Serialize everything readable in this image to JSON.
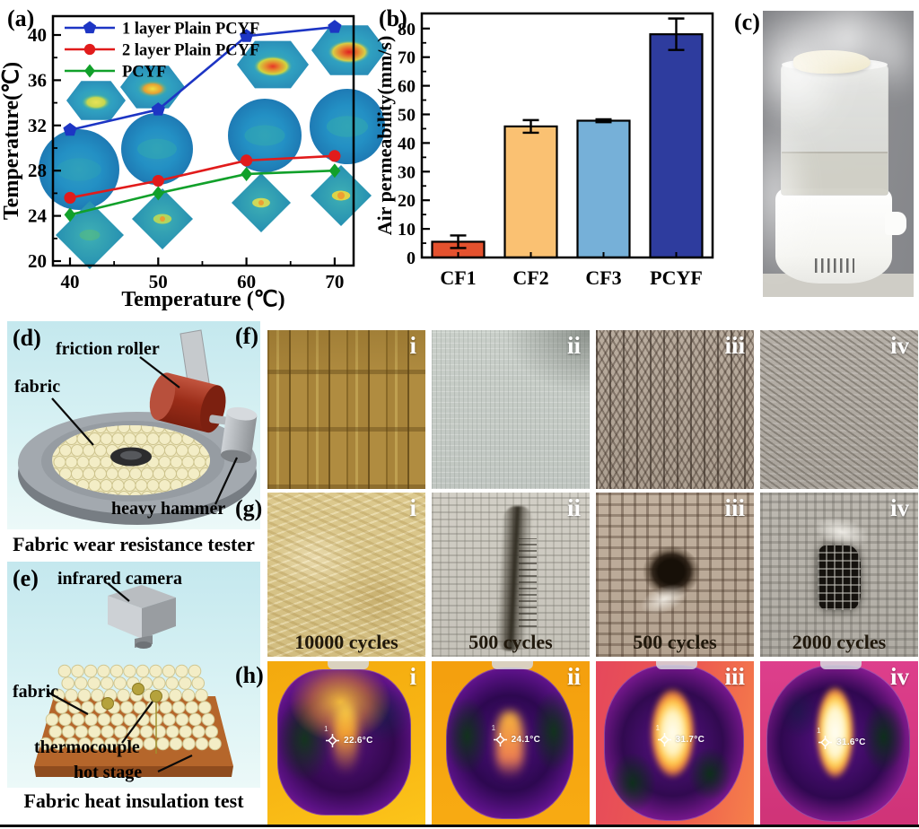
{
  "figure": {
    "panels": {
      "a": "(a)",
      "b": "(b)",
      "c": "(c)",
      "d": "(d)",
      "e": "(e)",
      "f": "(f)",
      "g": "(g)",
      "h": "(h)"
    }
  },
  "chart_data": [
    {
      "id": "a",
      "type": "line",
      "title": "",
      "xlabel": "Temperature (℃)",
      "ylabel": "Temperature(℃)",
      "x": [
        40,
        50,
        60,
        70
      ],
      "xticks": [
        40,
        50,
        60,
        70
      ],
      "xminor": [
        45,
        55,
        65
      ],
      "yticks": [
        20,
        24,
        28,
        32,
        36,
        40
      ],
      "yminor": [
        22,
        26,
        30,
        34,
        38
      ],
      "xlim": [
        38,
        72
      ],
      "ylim": [
        19.6,
        41.8
      ],
      "grid": false,
      "legend_position": "top-left",
      "series": [
        {
          "name": "1 layer Plain PCYF",
          "color": "#1d35c4",
          "marker": "pentagon",
          "values": [
            31.6,
            33.4,
            39.9,
            40.7
          ]
        },
        {
          "name": "2 layer Plain PCYF",
          "color": "#e11b1b",
          "marker": "circle",
          "values": [
            25.6,
            27.1,
            28.9,
            29.3
          ]
        },
        {
          "name": "PCYF",
          "color": "#11a02a",
          "marker": "diamond",
          "values": [
            24.1,
            26.0,
            27.7,
            28.0
          ]
        }
      ],
      "insets": "thermal images of hexagon, circle and diamond fabric samples at each temperature"
    },
    {
      "id": "b",
      "type": "bar",
      "title": "",
      "xlabel": "",
      "ylabel": "Air permeability(mm/s)",
      "categories": [
        "CF1",
        "CF2",
        "CF3",
        "PCYF"
      ],
      "values": [
        5.5,
        45.8,
        47.8,
        78
      ],
      "errors": [
        2.2,
        2.2,
        0.5,
        5.5
      ],
      "bar_colors": [
        "#e4512e",
        "#fac172",
        "#76b0d8",
        "#2e3c9e"
      ],
      "yticks": [
        0,
        10,
        20,
        30,
        40,
        50,
        60,
        70,
        80
      ],
      "yminor": [
        5,
        15,
        25,
        35,
        45,
        55,
        65,
        75
      ],
      "ylim": [
        0,
        85
      ],
      "grid": false
    }
  ],
  "panel_c": {
    "description": "photo of humidifier emitting mist with fabric sample on top"
  },
  "panel_d": {
    "labels": {
      "roller": "friction roller",
      "fabric": "fabric",
      "hammer": "heavy hammer"
    },
    "caption": "Fabric wear resistance tester"
  },
  "panel_e": {
    "labels": {
      "camera": "infrared camera",
      "fabric": "fabric",
      "thermocouple": "thermocouple",
      "stage": "hot stage"
    },
    "caption": "Fabric heat insulation test"
  },
  "panel_f": {
    "tags": [
      "i",
      "ii",
      "iii",
      "iv"
    ]
  },
  "panel_g": {
    "tags": [
      "i",
      "ii",
      "iii",
      "iv"
    ],
    "captions": [
      "10000 cycles",
      "500 cycles",
      "500 cycles",
      "2000 cycles"
    ]
  },
  "panel_h": {
    "tags": [
      "i",
      "ii",
      "iii",
      "iv"
    ],
    "readings": [
      "22.6°C",
      "24.1°C",
      "31.7°C",
      "31.6°C"
    ],
    "probe_label": "1"
  }
}
